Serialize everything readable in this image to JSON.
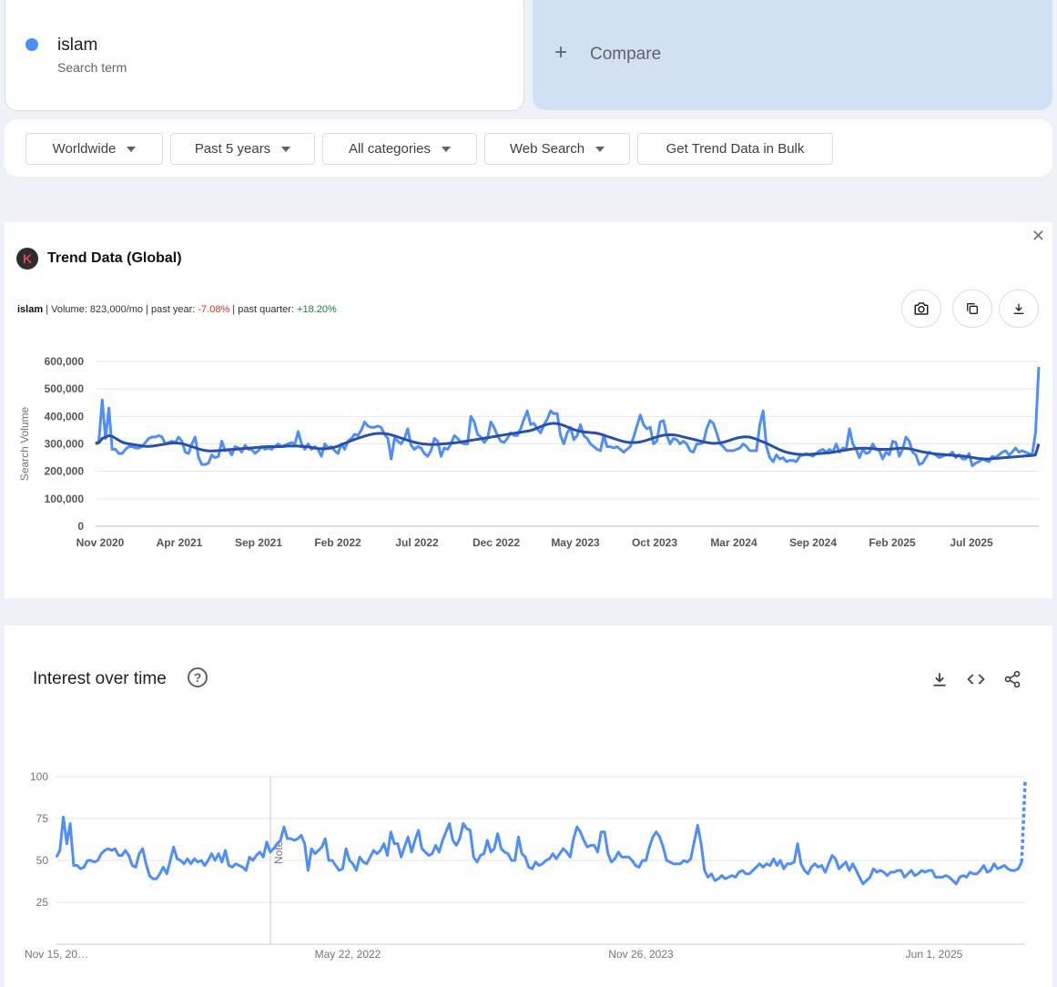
{
  "search_term": {
    "name": "islam",
    "subtitle": "Search term",
    "color": "#4f8ef7"
  },
  "compare": {
    "label": "Compare"
  },
  "filters": {
    "region": "Worldwide",
    "time_range": "Past 5 years",
    "category": "All categories",
    "search_type": "Web Search",
    "bulk_button": "Get Trend Data in Bulk"
  },
  "trend_card": {
    "title": "Trend Data (Global)",
    "keyword": "islam",
    "volume_text": "Volume: 823,000/mo",
    "past_year_label": "past year:",
    "past_year_value": "-7.08%",
    "past_quarter_label": "past quarter:",
    "past_quarter_value": "+18.20%"
  },
  "interest_card": {
    "title": "Interest over time",
    "marker_label": "Note"
  },
  "chart_data": [
    {
      "type": "line",
      "title": "Trend Data (Global)",
      "ylabel": "Search Volume",
      "ylim": [
        0,
        600000
      ],
      "yticks": [
        "600,000",
        "500,000",
        "400,000",
        "300,000",
        "200,000",
        "100,000",
        "0"
      ],
      "yticks_values": [
        600000,
        500000,
        400000,
        300000,
        200000,
        100000,
        0
      ],
      "xtick_labels": [
        "Nov 2020",
        "Apr 2021",
        "Sep 2021",
        "Feb 2022",
        "Jul 2022",
        "Dec 2022",
        "May 2023",
        "Oct 2023",
        "Mar 2024",
        "Sep 2024",
        "Feb 2025",
        "Jul 2025"
      ],
      "x_start": "2020-11-15",
      "x_end": "2025-11-09",
      "grid": true,
      "series": [
        {
          "color": "#4f8ef7",
          "values": [
            300000,
            310000,
            460000,
            320000,
            430000,
            280000,
            280000,
            265000,
            265000,
            280000,
            290000,
            290000,
            285000,
            285000,
            290000,
            305000,
            320000,
            325000,
            325000,
            330000,
            325000,
            300000,
            305000,
            310000,
            305000,
            325000,
            310000,
            270000,
            265000,
            300000,
            325000,
            250000,
            225000,
            225000,
            230000,
            260000,
            250000,
            255000,
            310000,
            275000,
            280000,
            260000,
            290000,
            285000,
            270000,
            295000,
            280000,
            280000,
            265000,
            275000,
            290000,
            280000,
            285000,
            280000,
            290000,
            300000,
            290000,
            295000,
            300000,
            305000,
            300000,
            345000,
            300000,
            280000,
            300000,
            280000,
            290000,
            280000,
            255000,
            300000,
            285000,
            290000,
            275000,
            265000,
            300000,
            280000,
            310000,
            320000,
            335000,
            330000,
            350000,
            380000,
            365000,
            360000,
            360000,
            365000,
            360000,
            335000,
            320000,
            245000,
            320000,
            310000,
            300000,
            320000,
            355000,
            295000,
            280000,
            290000,
            285000,
            265000,
            255000,
            275000,
            320000,
            310000,
            255000,
            285000,
            280000,
            300000,
            330000,
            320000,
            305000,
            300000,
            300000,
            400000,
            380000,
            335000,
            325000,
            305000,
            320000,
            380000,
            360000,
            330000,
            310000,
            305000,
            320000,
            340000,
            330000,
            330000,
            355000,
            390000,
            420000,
            370000,
            375000,
            355000,
            340000,
            370000,
            390000,
            420000,
            410000,
            410000,
            330000,
            300000,
            340000,
            360000,
            315000,
            330000,
            370000,
            330000,
            320000,
            300000,
            290000,
            280000,
            275000,
            330000,
            290000,
            290000,
            285000,
            290000,
            280000,
            270000,
            280000,
            290000,
            325000,
            365000,
            405000,
            370000,
            355000,
            360000,
            300000,
            310000,
            380000,
            385000,
            330000,
            300000,
            320000,
            315000,
            300000,
            310000,
            300000,
            275000,
            270000,
            300000,
            300000,
            305000,
            355000,
            385000,
            375000,
            340000,
            300000,
            290000,
            275000,
            275000,
            275000,
            280000,
            285000,
            300000,
            290000,
            275000,
            275000,
            275000,
            370000,
            420000,
            290000,
            250000,
            235000,
            260000,
            245000,
            250000,
            235000,
            240000,
            240000,
            235000,
            255000,
            260000,
            265000,
            260000,
            255000,
            265000,
            275000,
            280000,
            270000,
            280000,
            270000,
            300000,
            270000,
            285000,
            280000,
            355000,
            300000,
            280000,
            250000,
            280000,
            265000,
            270000,
            300000,
            280000,
            275000,
            245000,
            270000,
            260000,
            310000,
            305000,
            255000,
            280000,
            325000,
            310000,
            270000,
            260000,
            225000,
            230000,
            250000,
            270000,
            265000,
            260000,
            250000,
            255000,
            260000,
            260000,
            270000,
            250000,
            260000,
            245000,
            245000,
            265000,
            220000,
            230000,
            235000,
            245000,
            240000,
            235000,
            255000,
            250000,
            260000,
            270000,
            275000,
            260000,
            270000,
            285000,
            270000,
            275000,
            270000,
            265000,
            260000,
            340000,
            580000
          ]
        },
        {
          "color": "#2a4fa6",
          "values": [
            300000,
            305000,
            320000,
            325000,
            330000,
            327000,
            320000,
            312000,
            306000,
            302000,
            300000,
            298000,
            296000,
            294000,
            292000,
            291000,
            291000,
            292000,
            294000,
            296000,
            298000,
            300000,
            302000,
            303000,
            303000,
            302000,
            300000,
            296000,
            292000,
            288000,
            284000,
            280000,
            277000,
            275000,
            274000,
            274000,
            275000,
            276000,
            277000,
            278000,
            279000,
            280000,
            281000,
            282000,
            283000,
            284000,
            285000,
            286000,
            287000,
            288000,
            289000,
            290000,
            290000,
            290000,
            290000,
            290000,
            291000,
            292000,
            292000,
            292000,
            292000,
            291000,
            290000,
            289000,
            287000,
            285000,
            283000,
            282000,
            282000,
            283000,
            285000,
            288000,
            292000,
            297000,
            302000,
            307000,
            312000,
            317000,
            321000,
            325000,
            329000,
            332000,
            335000,
            337000,
            338000,
            338000,
            337000,
            335000,
            332000,
            328000,
            324000,
            320000,
            316000,
            312000,
            308000,
            305000,
            302000,
            300000,
            299000,
            298000,
            298000,
            298000,
            299000,
            300000,
            301000,
            302000,
            303000,
            304000,
            306000,
            308000,
            310000,
            312000,
            314000,
            316000,
            318000,
            320000,
            322000,
            324000,
            326000,
            328000,
            330000,
            332000,
            334000,
            336000,
            338000,
            340000,
            342000,
            344000,
            346000,
            348000,
            352000,
            357000,
            362000,
            367000,
            371000,
            374000,
            375000,
            374000,
            371000,
            367000,
            362000,
            357000,
            352000,
            348000,
            345000,
            343000,
            342000,
            341000,
            340000,
            338000,
            335000,
            331000,
            327000,
            323000,
            319000,
            315000,
            311000,
            308000,
            306000,
            305000,
            305000,
            306000,
            308000,
            311000,
            315000,
            319000,
            323000,
            327000,
            330000,
            332000,
            333000,
            333000,
            332000,
            330000,
            327000,
            324000,
            321000,
            318000,
            315000,
            312000,
            309000,
            306000,
            304000,
            302000,
            302000,
            303000,
            305000,
            308000,
            312000,
            316000,
            320000,
            323000,
            325000,
            326000,
            325000,
            322000,
            318000,
            313000,
            308000,
            303000,
            297000,
            291000,
            285000,
            279000,
            274000,
            270000,
            267000,
            265000,
            263000,
            262000,
            261000,
            261000,
            262000,
            263000,
            264000,
            265000,
            266000,
            267000,
            268000,
            270000,
            272000,
            274000,
            276000,
            278000,
            280000,
            282000,
            283000,
            284000,
            284000,
            284000,
            283000,
            282000,
            281000,
            280000,
            280000,
            280000,
            281000,
            282000,
            283000,
            284000,
            284000,
            283000,
            281000,
            278000,
            275000,
            272000,
            270000,
            268000,
            266000,
            264000,
            263000,
            262000,
            261000,
            260000,
            259000,
            258000,
            257000,
            256000,
            255000,
            253000,
            251000,
            249000,
            247000,
            246000,
            245000,
            245000,
            246000,
            247000,
            248000,
            249000,
            250000,
            251000,
            252000,
            253000,
            254000,
            255000,
            256000,
            257000,
            258000,
            260000,
            300000
          ]
        }
      ]
    },
    {
      "type": "line",
      "title": "Interest over time",
      "ylim": [
        0,
        100
      ],
      "yticks": [
        "100",
        "75",
        "50",
        "25"
      ],
      "yticks_values": [
        100,
        75,
        50,
        25
      ],
      "xtick_labels": [
        "Nov 15, 20…",
        "May 22, 2022",
        "Nov 26, 2023",
        "Jun 1, 2025"
      ],
      "x_start": "2020-11-15",
      "x_end": "2025-11-09",
      "grid": true,
      "series": [
        {
          "color": "#4f8ef7",
          "partial_last_point": true,
          "values": [
            52,
            56,
            76,
            60,
            72,
            47,
            47,
            45,
            46,
            50,
            50,
            49,
            50,
            54,
            56,
            57,
            56,
            57,
            53,
            53,
            56,
            53,
            47,
            46,
            54,
            57,
            48,
            41,
            39,
            39,
            42,
            46,
            42,
            50,
            58,
            51,
            50,
            48,
            51,
            48,
            51,
            49,
            50,
            47,
            50,
            54,
            50,
            54,
            49,
            56,
            47,
            46,
            48,
            47,
            46,
            44,
            52,
            50,
            53,
            55,
            52,
            61,
            55,
            57,
            60,
            62,
            70,
            63,
            63,
            62,
            63,
            65,
            60,
            44,
            57,
            54,
            56,
            58,
            63,
            50,
            50,
            47,
            44,
            45,
            57,
            50,
            48,
            44,
            52,
            49,
            48,
            52,
            56,
            54,
            56,
            60,
            53,
            67,
            60,
            60,
            52,
            58,
            64,
            55,
            62,
            68,
            57,
            55,
            53,
            54,
            59,
            55,
            62,
            67,
            72,
            62,
            59,
            63,
            72,
            69,
            68,
            52,
            49,
            53,
            54,
            62,
            55,
            57,
            66,
            57,
            55,
            54,
            50,
            50,
            64,
            54,
            52,
            46,
            45,
            49,
            47,
            48,
            50,
            51,
            54,
            51,
            54,
            57,
            55,
            52,
            63,
            70,
            67,
            62,
            58,
            59,
            59,
            55,
            67,
            67,
            54,
            49,
            51,
            55,
            52,
            52,
            52,
            50,
            47,
            46,
            50,
            50,
            58,
            64,
            67,
            64,
            58,
            50,
            49,
            48,
            48,
            48,
            50,
            49,
            51,
            61,
            71,
            60,
            44,
            40,
            42,
            38,
            39,
            41,
            39,
            40,
            41,
            40,
            43,
            44,
            42,
            42,
            44,
            46,
            48,
            46,
            48,
            47,
            51,
            47,
            50,
            45,
            48,
            48,
            49,
            60,
            48,
            44,
            42,
            46,
            48,
            46,
            47,
            43,
            48,
            53,
            51,
            45,
            47,
            49,
            44,
            48,
            44,
            40,
            36,
            38,
            40,
            45,
            43,
            44,
            43,
            41,
            43,
            43,
            44,
            44,
            40,
            42,
            44,
            41,
            42,
            44,
            43,
            44,
            44,
            40,
            40,
            40,
            41,
            40,
            38,
            36,
            40,
            41,
            40,
            43,
            42,
            42,
            44,
            47,
            43,
            44,
            48,
            45,
            46,
            47,
            45,
            44,
            44,
            45,
            49,
            97
          ]
        }
      ]
    }
  ]
}
